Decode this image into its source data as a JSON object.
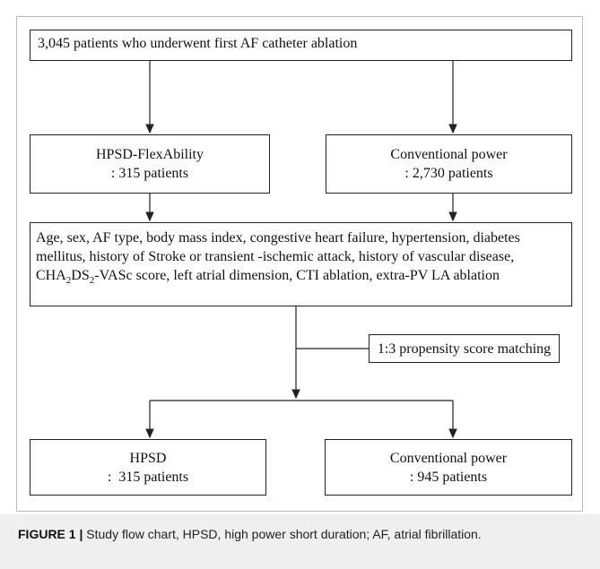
{
  "flowchart": {
    "nodes": {
      "cohort": {
        "label": "3,045 patients who underwent first AF catheter ablation"
      },
      "hpsd_initial": {
        "line1": "HPSD-FlexAbility",
        "line2": ": 315 patients"
      },
      "conv_initial": {
        "line1": "Conventional power",
        "line2": ": 2,730 patients"
      },
      "covariates": {
        "before": "Age, sex, AF type, body mass index, congestive heart failure, hypertension, diabetes mellitus, history of Stroke or transient -ischemic attack, history of vascular disease, CHA",
        "sub1": "2",
        "mid": "DS",
        "sub2": "2",
        "after": "-VASc score, left atrial dimension, CTI ablation, extra-PV LA ablation"
      },
      "matching": {
        "label": "1:3 propensity score matching"
      },
      "hpsd_matched": {
        "line1": "HPSD",
        "line2": ":  315 patients"
      },
      "conv_matched": {
        "line1": "Conventional power",
        "line2": ": 945 patients"
      }
    }
  },
  "caption": {
    "label": "FIGURE 1 |",
    "text": " Study flow chart, HPSD, high power short duration; AF, atrial fibrillation."
  }
}
